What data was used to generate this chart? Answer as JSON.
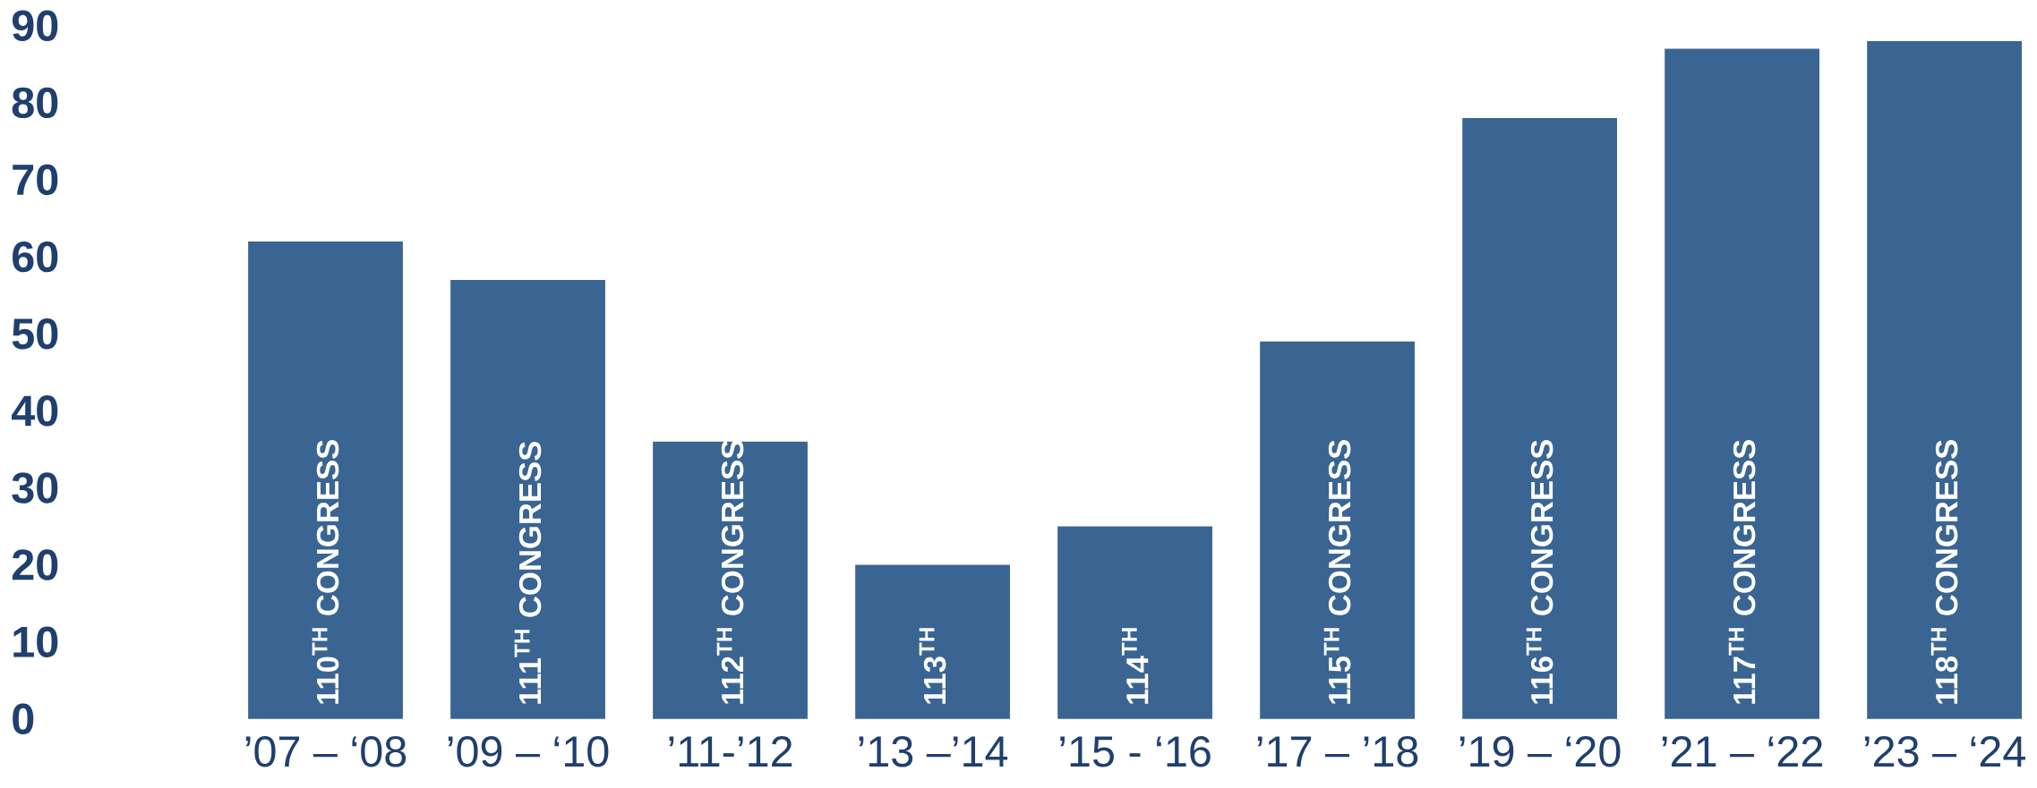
{
  "chart_data": {
    "type": "bar",
    "categories": [
      "’07 – ‘08",
      "’09 – ‘10",
      "’11-’12",
      "’13 –’14",
      "’15 - ‘16",
      "’17 – ’18",
      "’19 – ‘20",
      "’21 – ‘22",
      "’23 – ‘24"
    ],
    "values": [
      62,
      57,
      36,
      20,
      25,
      49,
      78,
      87,
      88
    ],
    "color": "#3a6592",
    "ylim": [
      0,
      90
    ],
    "yticks": [
      0,
      10,
      20,
      30,
      40,
      50,
      60,
      70,
      80,
      90
    ],
    "annotations": [
      "110$^{TH}$ CONGRESS",
      "111$^{TH}$ CONGRESS",
      "112$^{TH}$ CONGRESS",
      "113$^{TH}$",
      "114$^{TH}$",
      "115$^{TH}$ CONGRESS",
      "116$^{TH}$ CONGRESS",
      "117$^{TH}$ CONGRESS",
      "118$^{TH}$ CONGRESS"
    ]
  }
}
